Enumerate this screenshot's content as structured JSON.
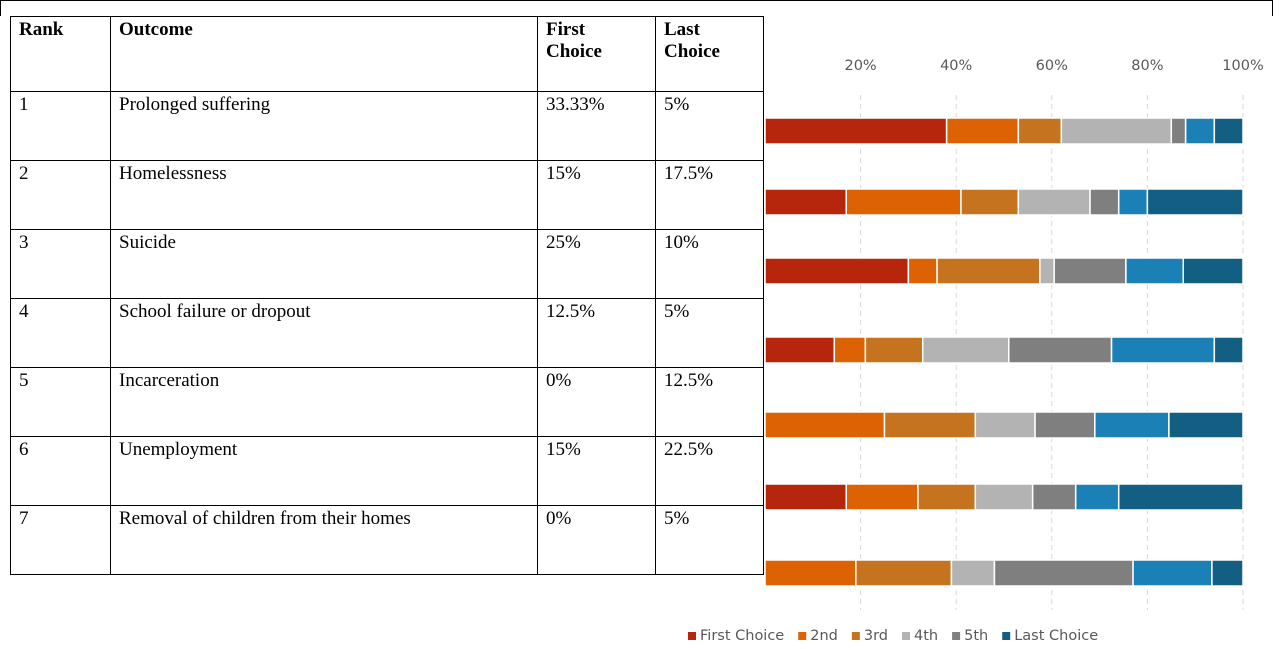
{
  "table": {
    "header": [
      "Rank",
      "Outcome",
      "First Choice",
      "Last Choice"
    ],
    "rows": [
      [
        "1",
        "Prolonged suffering",
        "33.33%",
        "5%"
      ],
      [
        "2",
        "Homelessness",
        "15%",
        "17.5%"
      ],
      [
        "3",
        "Suicide",
        "25%",
        "10%"
      ],
      [
        "4",
        "School failure or dropout",
        "12.5%",
        "5%"
      ],
      [
        "5",
        "Incarceration",
        "0%",
        "12.5%"
      ],
      [
        "6",
        "Unemployment",
        "15%",
        "22.5%"
      ],
      [
        "7",
        "Removal of children from their homes",
        "0%",
        "5%"
      ]
    ]
  },
  "chart_data": {
    "type": "stacked_barh",
    "categories": [
      null,
      null,
      null,
      null,
      null,
      null,
      null
    ],
    "xlim": [
      0,
      100
    ],
    "xticks": [
      {
        "value": 20,
        "label": "20%"
      },
      {
        "value": 40,
        "label": "40%"
      },
      {
        "value": 60,
        "label": "60%"
      },
      {
        "value": 80,
        "label": "80%"
      },
      {
        "value": 100,
        "label": "100%"
      }
    ],
    "grid": true,
    "legend": "bottom",
    "series": [
      {
        "name": "First Choice",
        "color": "#b5260d",
        "values": [
          38,
          17,
          30,
          14.5,
          0,
          17,
          0
        ]
      },
      {
        "name": "2nd",
        "color": "#dd6203",
        "values": [
          15,
          24,
          6,
          6.5,
          25,
          15,
          19
        ]
      },
      {
        "name": "3rd",
        "color": "#c5731f",
        "values": [
          9,
          12,
          21.5,
          12,
          19,
          12,
          20
        ]
      },
      {
        "name": "4th",
        "color": "#b3b3b3",
        "values": [
          23,
          15,
          3,
          18,
          12.5,
          12,
          9
        ]
      },
      {
        "name": "5th",
        "color": "#7f7f7f",
        "values": [
          3,
          6,
          15,
          21.5,
          12.5,
          9,
          29
        ]
      },
      {
        "color": "#1a80b6",
        "values": [
          6,
          6,
          12,
          21.5,
          15.5,
          9,
          16.5
        ]
      },
      {
        "name": "Last Choice",
        "color": "#135f84",
        "values": [
          6,
          20,
          12.5,
          6,
          15.5,
          26,
          6.5
        ]
      }
    ]
  }
}
